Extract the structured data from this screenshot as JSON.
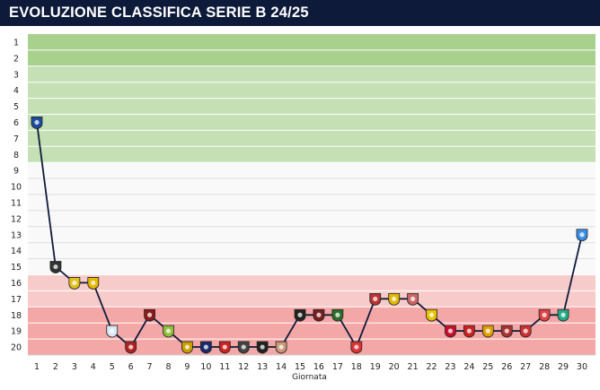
{
  "title": "EVOLUZIONE CLASSIFICA SERIE B 24/25",
  "chart_data": {
    "type": "line",
    "title": "EVOLUZIONE CLASSIFICA SERIE B 24/25",
    "xlabel": "Giornata",
    "ylabel": "",
    "x": [
      1,
      2,
      3,
      4,
      5,
      6,
      7,
      8,
      9,
      10,
      11,
      12,
      13,
      14,
      15,
      16,
      17,
      18,
      19,
      20,
      21,
      22,
      23,
      24,
      25,
      26,
      27,
      28,
      29,
      30
    ],
    "y": [
      6,
      15,
      16,
      16,
      19,
      20,
      18,
      19,
      20,
      20,
      20,
      20,
      20,
      20,
      18,
      18,
      18,
      20,
      17,
      17,
      17,
      18,
      19,
      19,
      19,
      19,
      19,
      18,
      18,
      13
    ],
    "xlim": [
      1,
      30
    ],
    "ylim": [
      1,
      20
    ],
    "y_inverted": true,
    "grid": true,
    "bands": [
      {
        "from": 1,
        "to": 2,
        "color": "#a9d18e"
      },
      {
        "from": 3,
        "to": 8,
        "color": "#c5e0b4"
      },
      {
        "from": 9,
        "to": 15,
        "color": "#f9f9f9"
      },
      {
        "from": 16,
        "to": 17,
        "color": "#f8cbcb"
      },
      {
        "from": 18,
        "to": 20,
        "color": "#f4a7a7"
      }
    ],
    "colors": {
      "line": "#0e1a3a",
      "title_bg": "#0e1a3a",
      "grid": "#ffffff"
    }
  }
}
